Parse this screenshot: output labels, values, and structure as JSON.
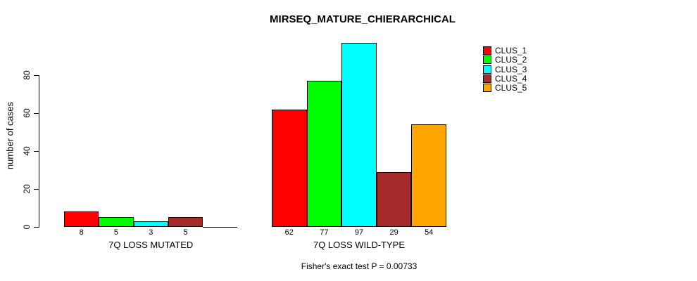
{
  "page": {
    "title": "MIRSEQ_MATURE_CHIERARCHICAL",
    "ylabel": "number of cases",
    "annotation": "Fisher's exact test P = 0.00733"
  },
  "chart_data": {
    "type": "bar",
    "title": "MIRSEQ_MATURE_CHIERARCHICAL",
    "xlabel": "",
    "ylabel": "number of cases",
    "categories": [
      "7Q LOSS MUTATED",
      "7Q LOSS WILD-TYPE"
    ],
    "series": [
      {
        "name": "CLUS_1",
        "color": "#FF0000",
        "values": [
          8,
          62
        ]
      },
      {
        "name": "CLUS_2",
        "color": "#00FF00",
        "values": [
          5,
          77
        ]
      },
      {
        "name": "CLUS_3",
        "color": "#00FFFF",
        "values": [
          3,
          97
        ]
      },
      {
        "name": "CLUS_4",
        "color": "#A52A2A",
        "values": [
          5,
          29
        ]
      },
      {
        "name": "CLUS_5",
        "color": "#FFA500",
        "values": [
          0,
          54
        ]
      }
    ],
    "bar_value_labels": [
      [
        "8",
        "5",
        "3",
        "5",
        ""
      ],
      [
        "62",
        "77",
        "97",
        "29",
        "54"
      ]
    ],
    "yticks": [
      0,
      20,
      40,
      60,
      80
    ],
    "ylim": [
      0,
      100
    ],
    "grid": false,
    "legend_position": "right",
    "annotation": "Fisher's exact test P = 0.00733"
  }
}
